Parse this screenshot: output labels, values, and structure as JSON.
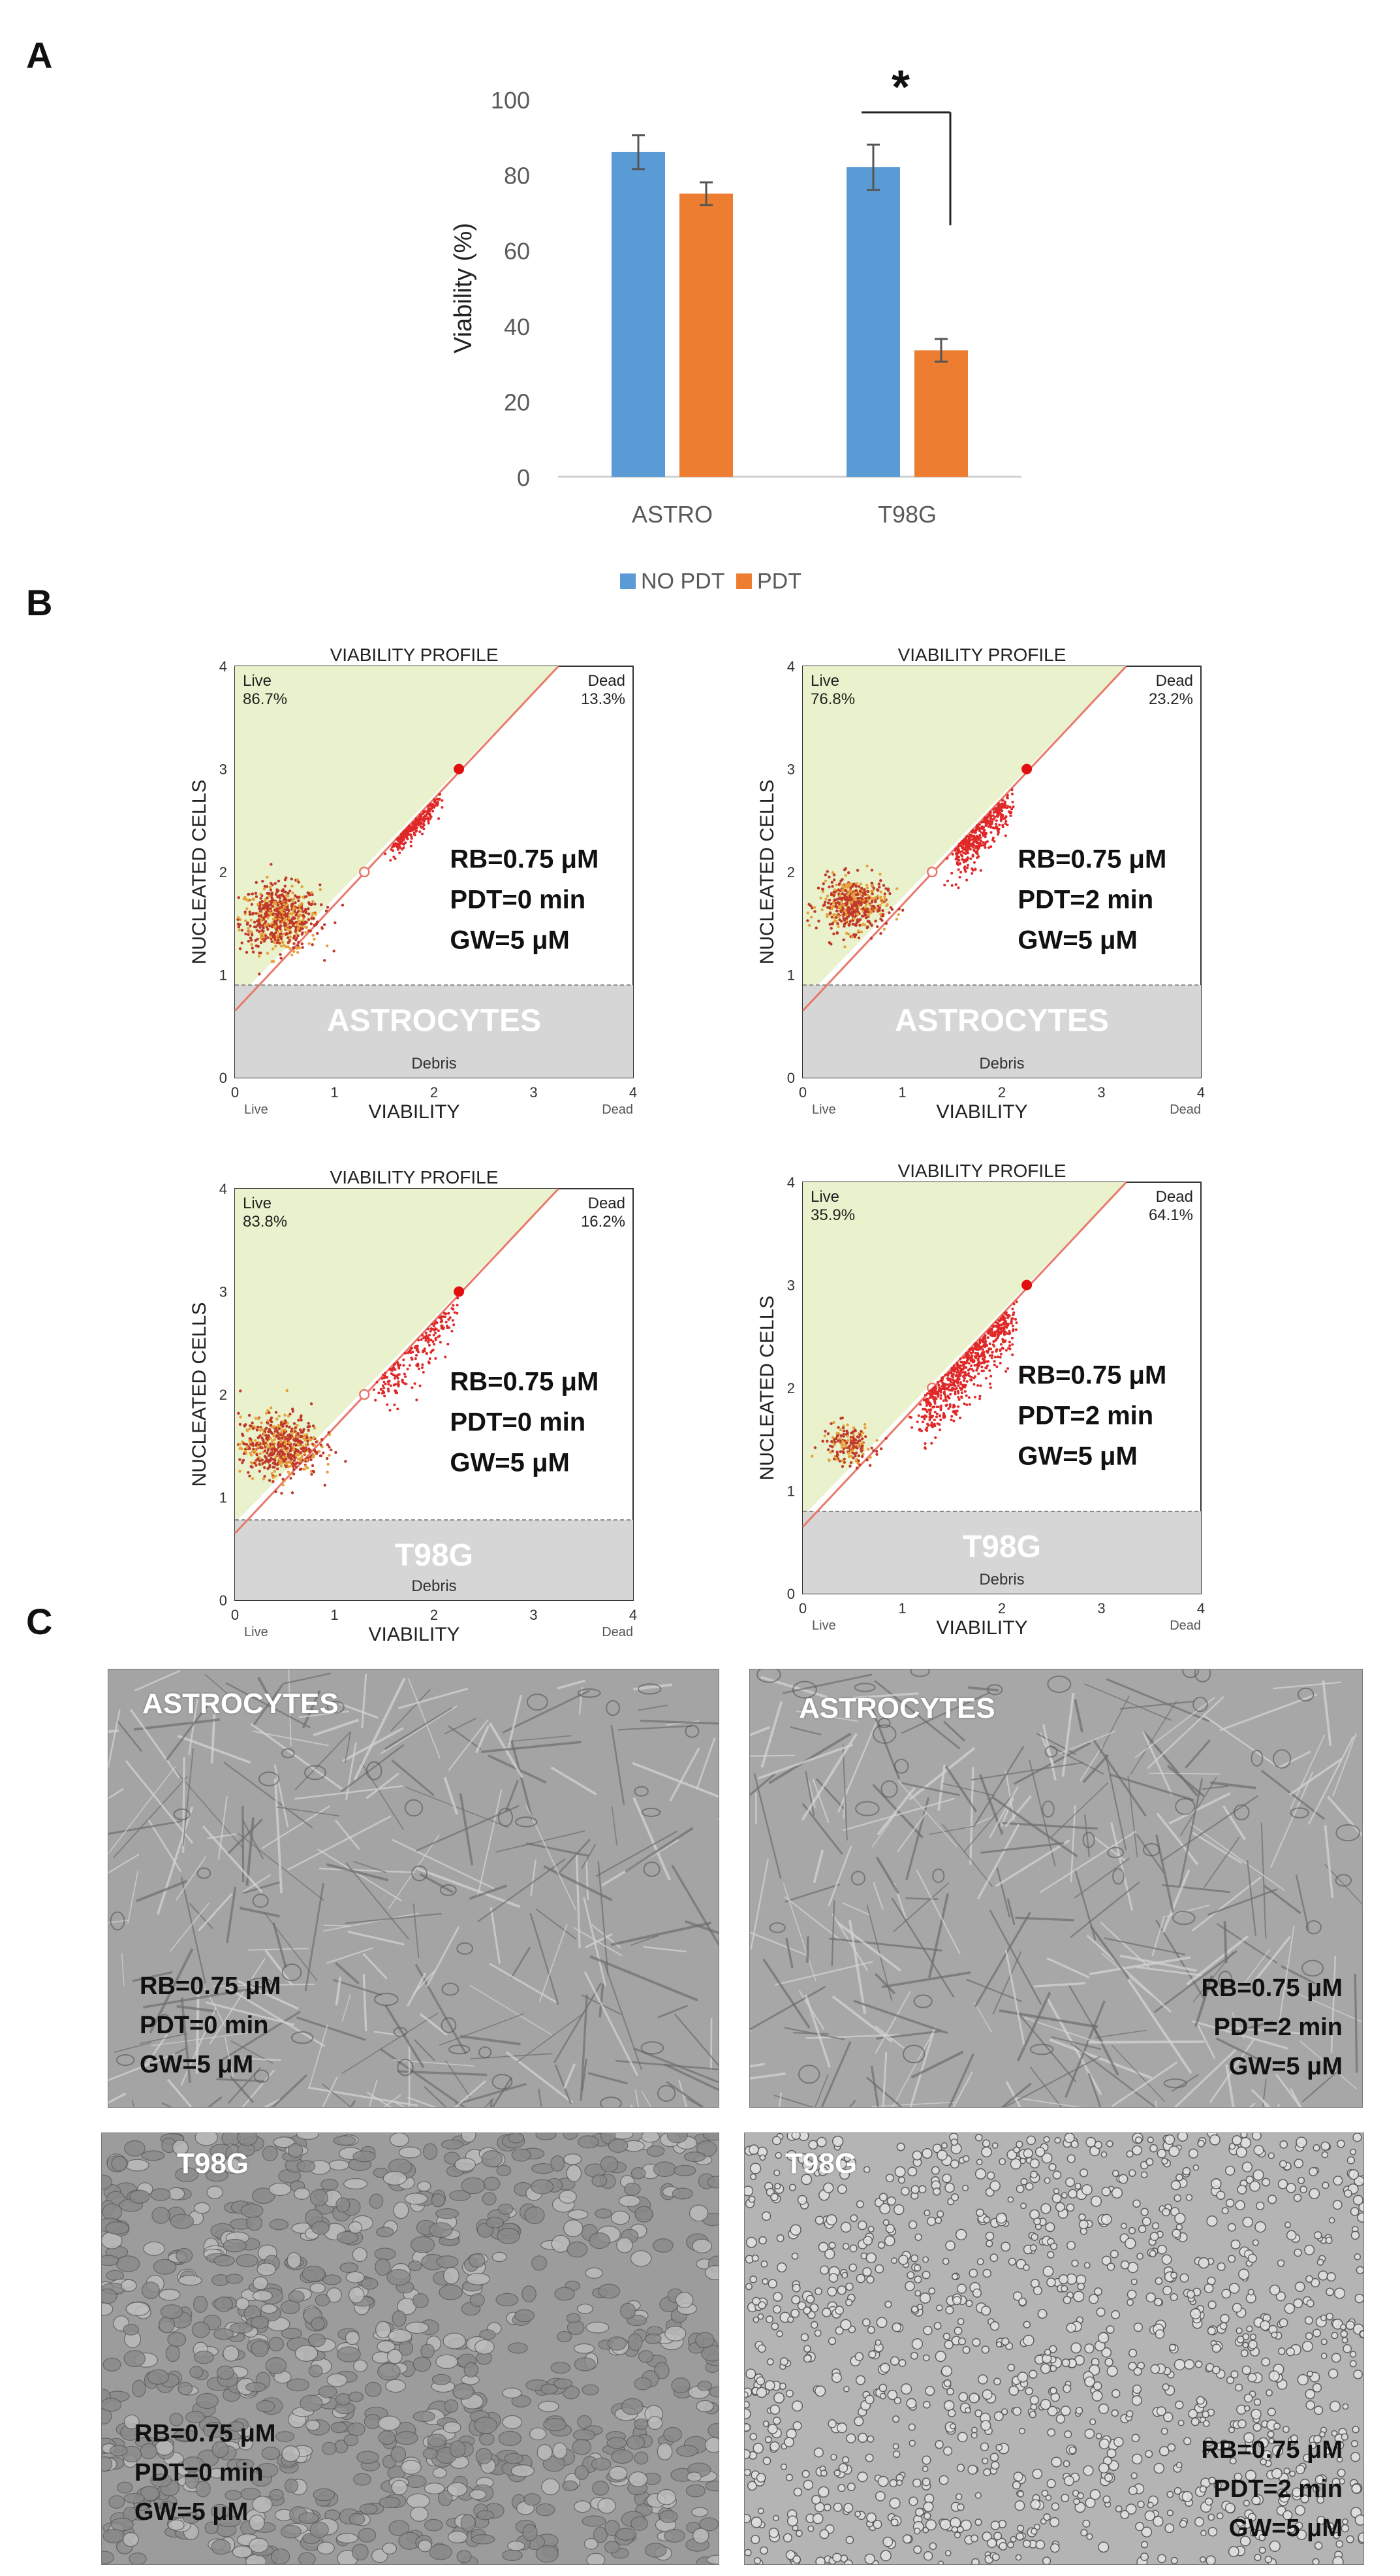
{
  "panels": {
    "a": "A",
    "b": "B",
    "c": "C"
  },
  "colors": {
    "no_pdt": "#5b9bd5",
    "pdt": "#ed7d31",
    "gate_line": "#e8786a",
    "live_region": "#e9f2cc",
    "debris_region": "#d6d6d6",
    "dot": "#c0392b"
  },
  "chart_data": {
    "type": "bar",
    "categories": [
      "ASTRO",
      "T98G"
    ],
    "ylabel": "Viability (%)",
    "ylim": [
      0,
      100
    ],
    "yticks": [
      "0",
      "20",
      "40",
      "60",
      "80",
      "100"
    ],
    "series": [
      {
        "name": "NO PDT",
        "values": [
          86,
          82
        ],
        "errors": [
          4.5,
          6
        ]
      },
      {
        "name": "PDT",
        "values": [
          75,
          33.5
        ],
        "errors": [
          3,
          3
        ]
      }
    ],
    "significance": {
      "label": "*",
      "category": "T98G"
    }
  },
  "flow": {
    "title": "VIABILITY PROFILE",
    "y_axis": "NUCLEATED CELLS",
    "x_axis": "VIABILITY",
    "ticks": [
      "0",
      "1",
      "2",
      "3",
      "4"
    ],
    "live_label": "Live",
    "dead_label": "Dead",
    "debris_label": "Debris",
    "plots": [
      {
        "cell": "ASTROCYTES",
        "live_pct": "86.7%",
        "dead_pct": "13.3%",
        "rb": "RB=0.75 μM",
        "pdt": "PDT=0 min",
        "gw": "GW=5 μM"
      },
      {
        "cell": "ASTROCYTES",
        "live_pct": "76.8%",
        "dead_pct": "23.2%",
        "rb": "RB=0.75 μM",
        "pdt": "PDT=2 min",
        "gw": "GW=5 μM"
      },
      {
        "cell": "T98G",
        "live_pct": "83.8%",
        "dead_pct": "16.2%",
        "rb": "RB=0.75 μM",
        "pdt": "PDT=0 min",
        "gw": "GW=5 μM"
      },
      {
        "cell": "T98G",
        "live_pct": "35.9%",
        "dead_pct": "64.1%",
        "rb": "RB=0.75 μM",
        "pdt": "PDT=2 min",
        "gw": "GW=5 μM"
      }
    ]
  },
  "micrographs": [
    {
      "cell": "ASTROCYTES",
      "rb": "RB=0.75 μM",
      "pdt": "PDT=0 min",
      "gw": "GW=5 μM"
    },
    {
      "cell": "ASTROCYTES",
      "rb": "RB=0.75 μM",
      "pdt": "PDT=2 min",
      "gw": "GW=5 μM"
    },
    {
      "cell": "T98G",
      "rb": "RB=0.75 μM",
      "pdt": "PDT=0 min",
      "gw": "GW=5 μM"
    },
    {
      "cell": "T98G",
      "rb": "RB=0.75 μM",
      "pdt": "PDT=2 min",
      "gw": "GW=5 μM"
    }
  ]
}
